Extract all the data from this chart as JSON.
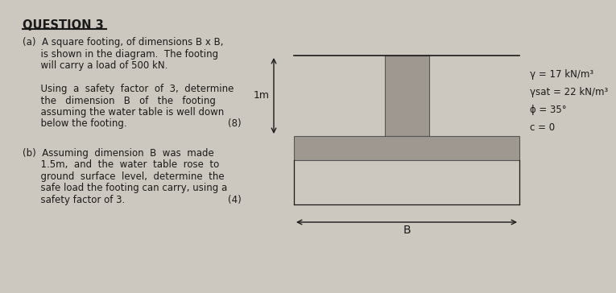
{
  "title": "QUESTION 3",
  "background_color": "#cdc8bf",
  "text_color": "#1a1a1a",
  "footing_color": "#9e9890",
  "footing_edge": "#555555",
  "param1": "γ = 17 kN/m³",
  "param2": "γsat = 22 kN/m³",
  "param3": "ϕ = 35°",
  "param4": "c = 0",
  "depth_label": "1m",
  "width_label": "B",
  "lines_a": [
    "(a)  A square footing, of dimensions B x B,",
    "      is shown in the diagram.  The footing",
    "      will carry a load of 500 kN.",
    "",
    "      Using  a  safety  factor  of  3,  determine",
    "      the   dimension   B   of   the   footing",
    "      assuming the water table is well down",
    "      below the footing."
  ],
  "marks_a": "(8)",
  "lines_b": [
    "(b)  Assuming  dimension  B  was  made",
    "      1.5m,  and  the  water  table  rose  to",
    "      ground  surface  level,  determine  the",
    "      safe load the footing can carry, using a",
    "      safety factor of 3."
  ],
  "marks_b": "(4)"
}
